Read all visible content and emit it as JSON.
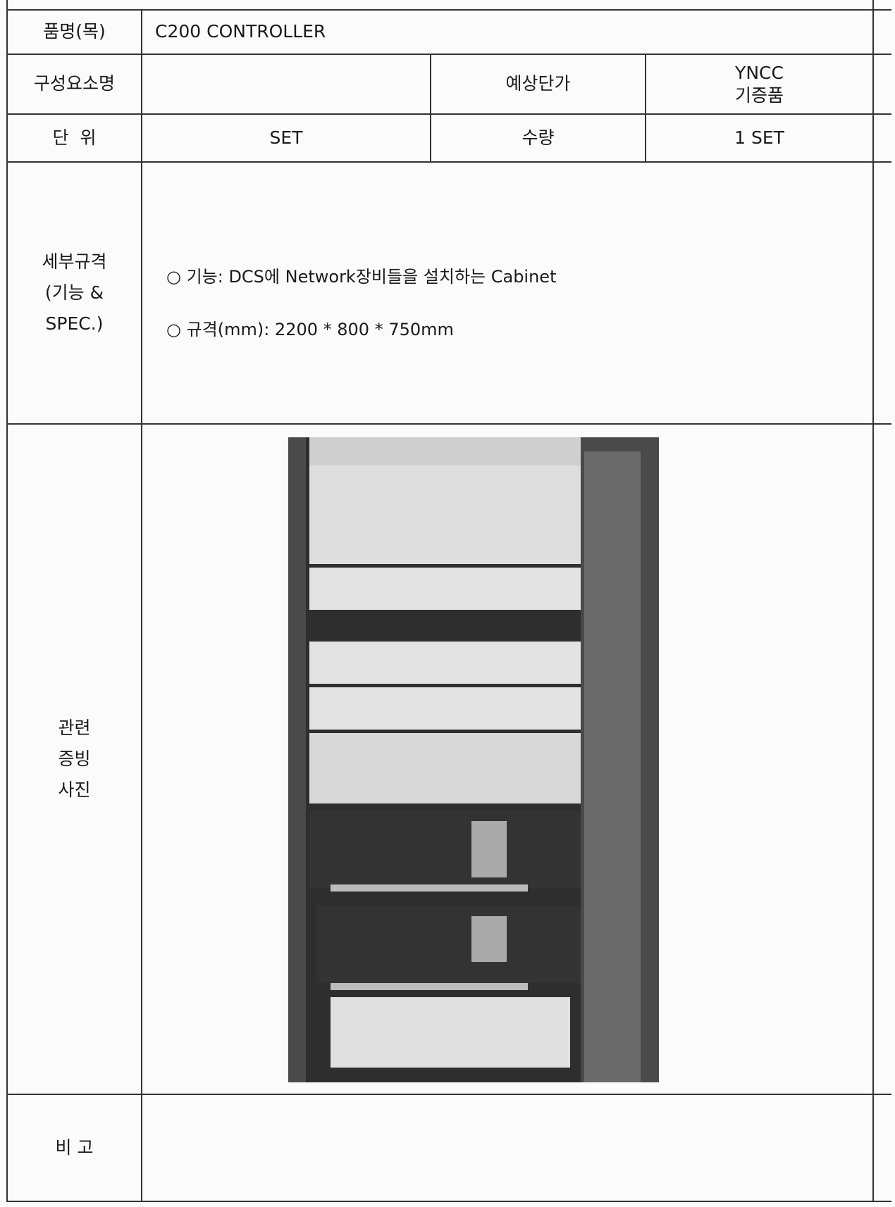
{
  "table": {
    "item_name": {
      "label": "품명(목)",
      "value": "C200 CONTROLLER"
    },
    "component": {
      "label": "구성요소명"
    },
    "price": {
      "label": "예상단가",
      "value_lines": [
        "YNCC",
        "기증품"
      ]
    },
    "unit": {
      "label": "단  위",
      "value": "SET"
    },
    "quantity": {
      "label": "수량",
      "value": "1 SET"
    },
    "spec": {
      "label_lines": [
        "세부규격",
        "(기능 &",
        "SPEC.)"
      ],
      "items": [
        "○ 기능: DCS에 Network장비들을 설치하는 Cabinet",
        "○ 규격(mm): 2200 * 800 * 750mm"
      ]
    },
    "photo": {
      "label_lines": [
        "관련",
        "증빙",
        "사진"
      ]
    },
    "remarks": {
      "label": "비 고"
    }
  }
}
